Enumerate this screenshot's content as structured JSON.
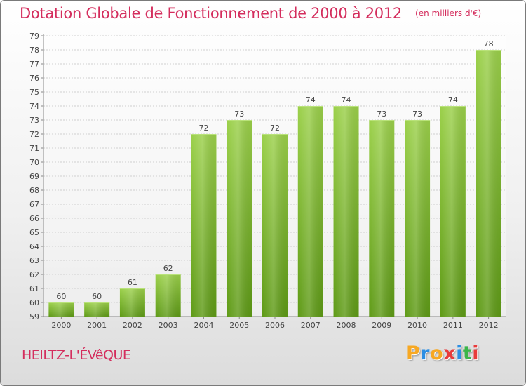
{
  "title": "Dotation Globale de Fonctionnement de 2000 à 2012",
  "subtitle": "(en milliers d'€)",
  "commune": "HEILTZ-L'ÉVêQUE",
  "logo": {
    "letters": [
      "P",
      "r",
      "o",
      "x",
      "i",
      "t",
      "i"
    ],
    "colors": [
      "#f7a823",
      "#2b8ee3",
      "#f7a823",
      "#e83b3b",
      "#2b8ee3",
      "#3ab54a",
      "#e83b3b"
    ]
  },
  "colors": {
    "bar_top": "#9bd04a",
    "bar_bottom": "#5e9a16",
    "accent": "#d42d5d",
    "grid": "#cfcfcf"
  },
  "chart_data": {
    "type": "bar",
    "title": "Dotation Globale de Fonctionnement de 2000 à 2012",
    "subtitle": "(en milliers d'€)",
    "categories": [
      "2000",
      "2001",
      "2002",
      "2003",
      "2004",
      "2005",
      "2006",
      "2007",
      "2008",
      "2009",
      "2010",
      "2011",
      "2012"
    ],
    "values": [
      60,
      60,
      61,
      62,
      72,
      73,
      72,
      74,
      74,
      73,
      73,
      74,
      78
    ],
    "ylim": [
      59,
      79
    ],
    "yticks": [
      59,
      60,
      61,
      62,
      63,
      64,
      65,
      66,
      67,
      68,
      69,
      70,
      71,
      72,
      73,
      74,
      75,
      76,
      77,
      78,
      79
    ],
    "grid": true,
    "data_labels": true
  }
}
